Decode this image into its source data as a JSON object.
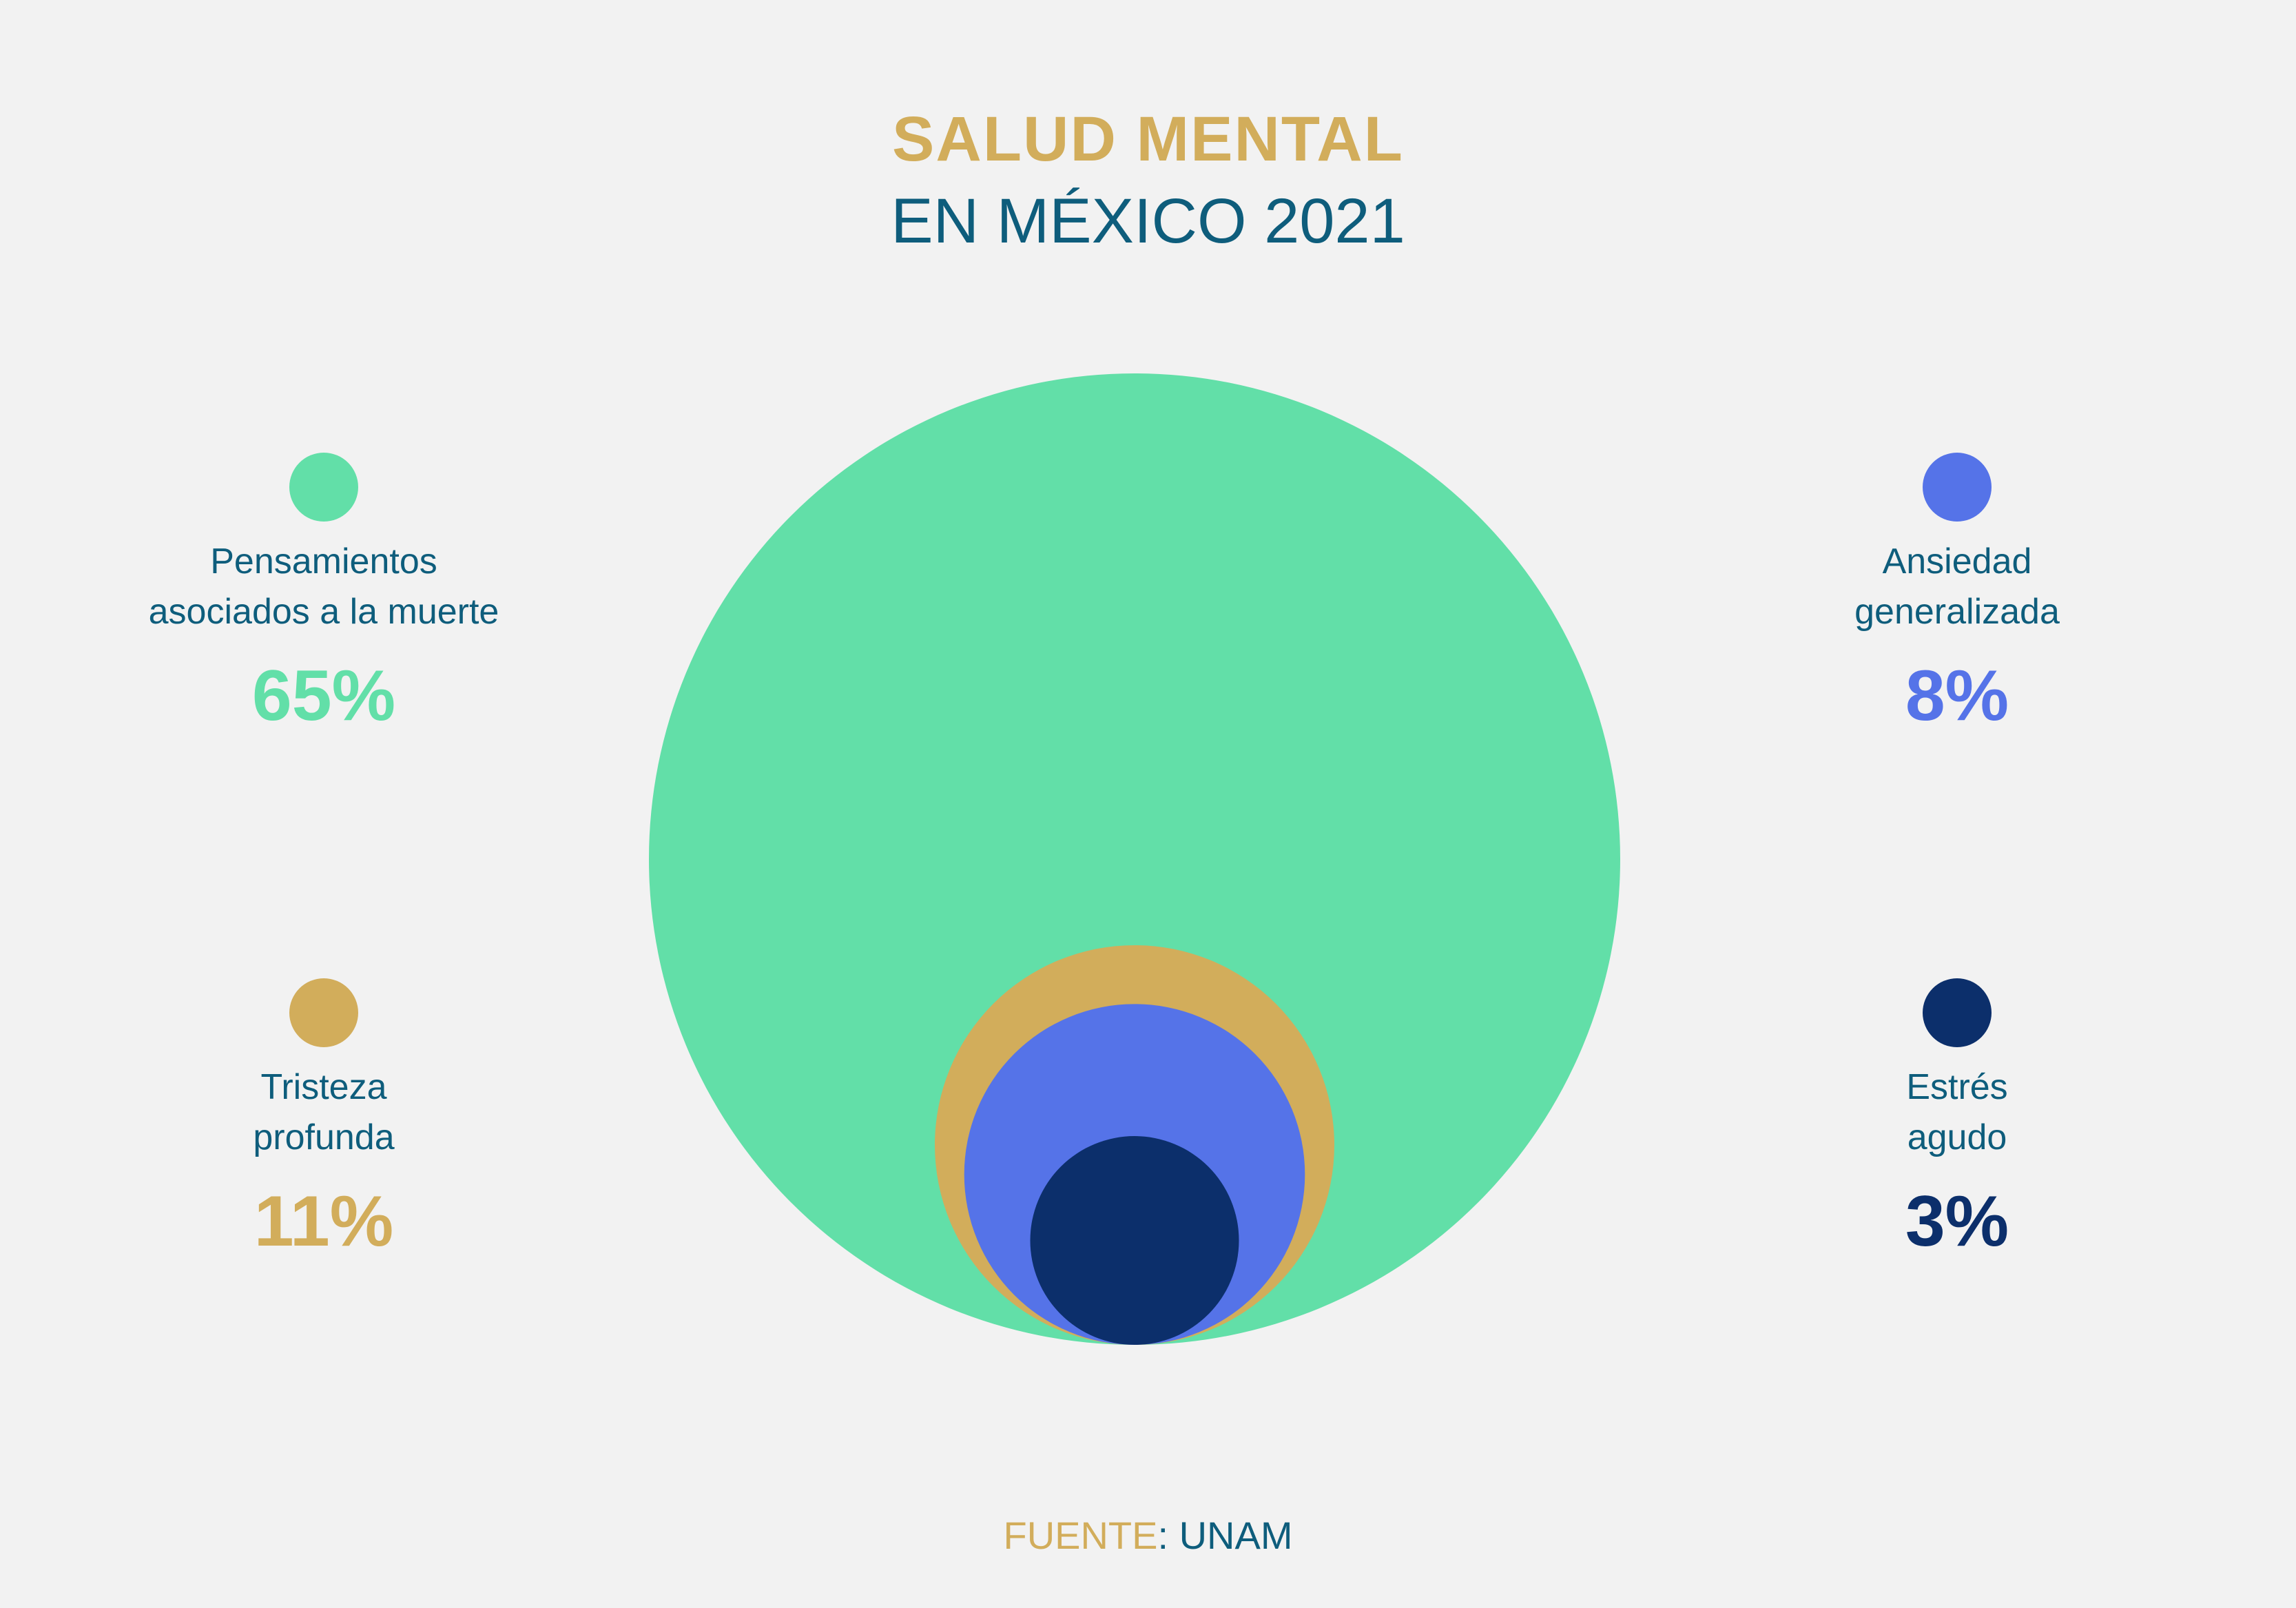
{
  "title": {
    "line1": "SALUD MENTAL",
    "line2": "EN MÉXICO 2021"
  },
  "colors": {
    "background": "#f2f2f2",
    "title_accent": "#d2ad5b",
    "text_primary": "#0e5d7c"
  },
  "chart_data": {
    "type": "nested-bubble",
    "title": "SALUD MENTAL EN MÉXICO 2021",
    "unit": "%",
    "series": [
      {
        "name": "Pensamientos asociados a la muerte",
        "value": 65,
        "display": "65%",
        "color": "#62dfa8"
      },
      {
        "name": "Tristeza profunda",
        "value": 11,
        "display": "11%",
        "color": "#d2ad5b"
      },
      {
        "name": "Ansiedad generalizada",
        "value": 8,
        "display": "8%",
        "color": "#5573e8"
      },
      {
        "name": "Estrés agudo",
        "value": 3,
        "display": "3%",
        "color": "#0c2f6b"
      }
    ]
  },
  "legend": {
    "muerte": {
      "label": "Pensamientos\nasociados a la muerte",
      "value": "65%",
      "color": "#62dfa8"
    },
    "ansiedad": {
      "label": "Ansiedad\ngeneralizada",
      "value": "8%",
      "color": "#5573e8"
    },
    "tristeza": {
      "label": "Tristeza\nprofunda",
      "value": "11%",
      "color": "#d2ad5b"
    },
    "estres": {
      "label": "Estrés\nagudo",
      "value": "3%",
      "color": "#0c2f6b"
    }
  },
  "source": {
    "key": "FUENTE",
    "sep": ": ",
    "value": "UNAM"
  }
}
